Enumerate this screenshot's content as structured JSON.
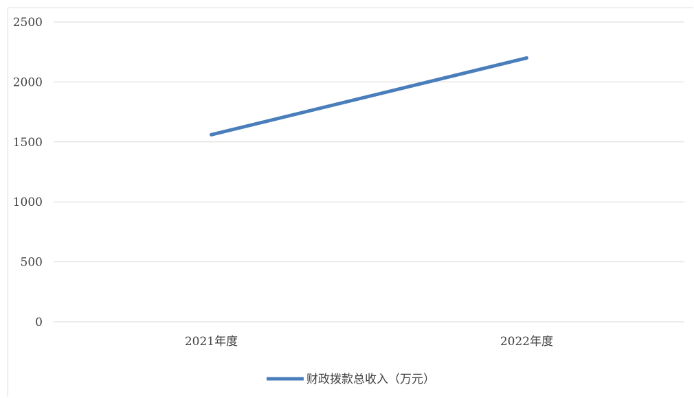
{
  "chart_data": {
    "type": "line",
    "categories": [
      "2021年度",
      "2022年度"
    ],
    "series": [
      {
        "name": "财政拨款总收入（万元）",
        "values": [
          1560,
          2200
        ],
        "color": "#4a7ebb"
      }
    ],
    "ylim": [
      0,
      2500
    ],
    "yticks": [
      0,
      500,
      1000,
      1500,
      2000,
      2500
    ],
    "grid": true,
    "gridColor": "#d9d9d9",
    "legend": "bottom"
  }
}
